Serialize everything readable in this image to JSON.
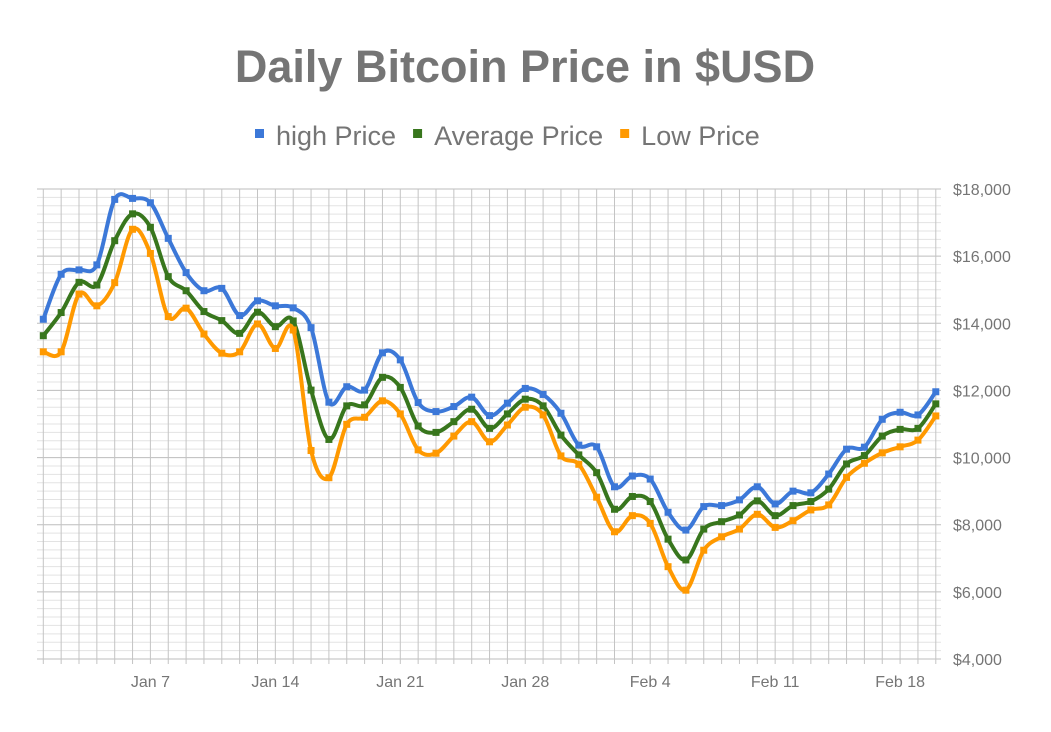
{
  "chart_data": {
    "type": "line",
    "title": "Daily Bitcoin Price in $USD",
    "xlabel": "",
    "ylabel": "",
    "ylim": [
      4000,
      18000
    ],
    "yticks": [
      4000,
      6000,
      8000,
      10000,
      12000,
      14000,
      16000,
      18000
    ],
    "ytick_labels": [
      "$4,000",
      "$6,000",
      "$8,000",
      "$10,000",
      "$12,000",
      "$14,000",
      "$16,000",
      "$18,000"
    ],
    "xtick_labels": [
      {
        "day": 6,
        "label": "Jan 7"
      },
      {
        "day": 13,
        "label": "Jan 14"
      },
      {
        "day": 20,
        "label": "Jan 21"
      },
      {
        "day": 27,
        "label": "Jan 28"
      },
      {
        "day": 34,
        "label": "Feb 4"
      },
      {
        "day": 41,
        "label": "Feb 11"
      },
      {
        "day": 48,
        "label": "Feb 18"
      }
    ],
    "x_range": [
      "Jan 1",
      "Feb 20"
    ],
    "grid": true,
    "minor_grid_step": 250,
    "smooth": true,
    "legend_position": "top",
    "y_axis_side": "right",
    "series": [
      {
        "name": "high Price",
        "color": "#3c78d8",
        "values": [
          14120,
          15460,
          15590,
          15740,
          17690,
          17720,
          17590,
          16530,
          15510,
          14970,
          15040,
          14230,
          14670,
          14520,
          14460,
          13870,
          11650,
          12110,
          12010,
          13120,
          12910,
          11640,
          11370,
          11520,
          11800,
          11250,
          11620,
          12060,
          11880,
          11320,
          10370,
          10320,
          9130,
          9450,
          9360,
          8370,
          7840,
          8540,
          8570,
          8740,
          9130,
          8620,
          9000,
          8950,
          9510,
          10250,
          10310,
          11140,
          11350,
          11270,
          11960
        ]
      },
      {
        "name": "Average Price",
        "color": "#38761d",
        "values": [
          13630,
          14320,
          15220,
          15140,
          16460,
          17260,
          16860,
          15390,
          14970,
          14350,
          14080,
          13700,
          14330,
          13900,
          14070,
          12010,
          10540,
          11540,
          11570,
          12390,
          12090,
          10940,
          10750,
          11070,
          11440,
          10870,
          11300,
          11740,
          11540,
          10670,
          10080,
          9550,
          8460,
          8840,
          8690,
          7570,
          6950,
          7870,
          8090,
          8290,
          8710,
          8270,
          8570,
          8690,
          9060,
          9810,
          10060,
          10640,
          10840,
          10870,
          11600
        ]
      },
      {
        "name": "Low Price",
        "color": "#ff9900",
        "values": [
          13150,
          13150,
          14870,
          14520,
          15210,
          16800,
          16080,
          14200,
          14450,
          13680,
          13110,
          13150,
          13980,
          13250,
          13800,
          10210,
          9400,
          10990,
          11200,
          11690,
          11300,
          10230,
          10130,
          10640,
          11070,
          10470,
          10970,
          11500,
          11270,
          10050,
          9800,
          8820,
          7790,
          8270,
          8040,
          6750,
          6050,
          7240,
          7640,
          7870,
          8310,
          7920,
          8120,
          8440,
          8590,
          9410,
          9830,
          10140,
          10320,
          10520,
          11240
        ]
      }
    ]
  }
}
